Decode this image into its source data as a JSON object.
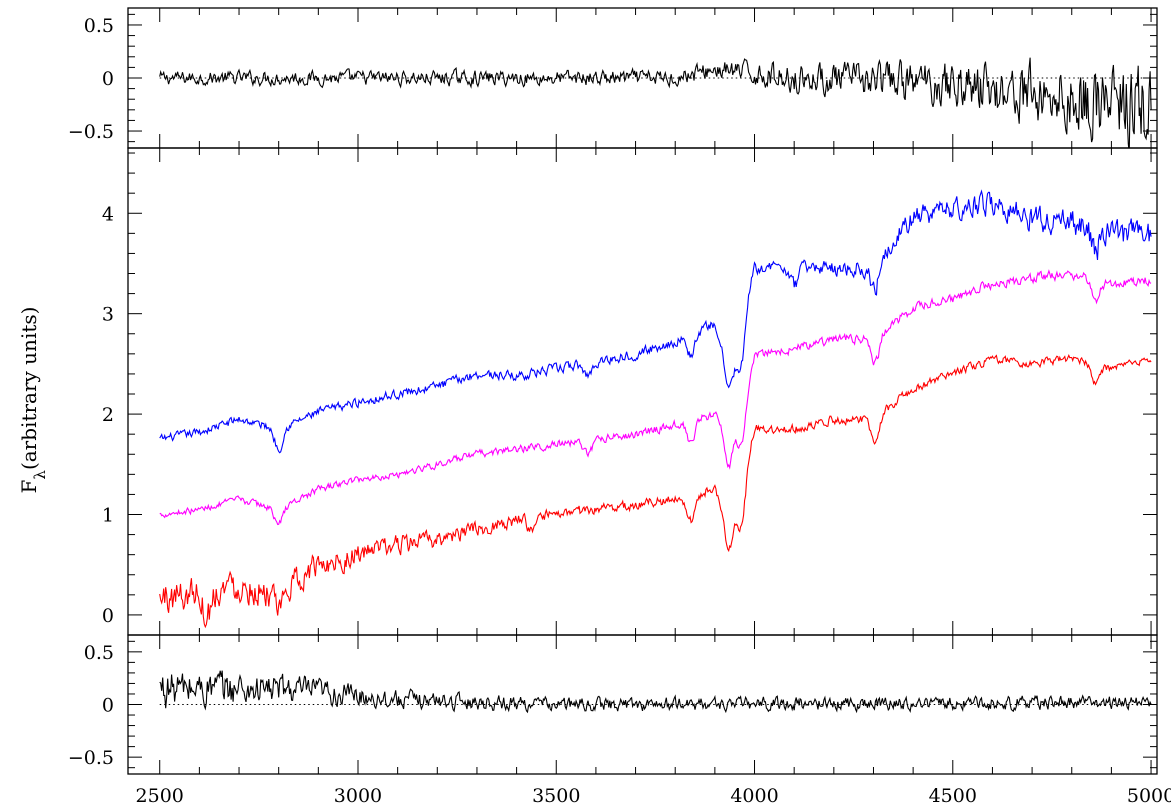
{
  "chart_data": {
    "type": "line",
    "ylabel": "Fλ(arbitrary units)",
    "ylabel_main": "F",
    "ylabel_sub": "λ",
    "ylabel_rest": "(arbitrary units)",
    "xlim": [
      2420,
      5015
    ],
    "xticks": [
      2500,
      3000,
      3500,
      4000,
      4500,
      5000
    ],
    "xtick_labels": [
      "2500",
      "3000",
      "3500",
      "4000",
      "4500",
      "5000"
    ],
    "grid": false,
    "legend": "none",
    "panels": [
      {
        "id": "top-residual",
        "ylim": [
          -0.66,
          0.66
        ],
        "yticks_labeled": [
          -0.5,
          0,
          0.5
        ],
        "ytick_labels": [
          "−0.5",
          "0",
          "0.5"
        ],
        "zero_line": "dotted",
        "series": [
          {
            "color": "#000000",
            "style": "residual",
            "noise": 0.06,
            "trend": [
              [
                2500,
                0.0
              ],
              [
                3800,
                0.0
              ],
              [
                3900,
                0.08
              ],
              [
                4100,
                0.0
              ],
              [
                4500,
                -0.05
              ],
              [
                4800,
                -0.2
              ],
              [
                5000,
                -0.3
              ]
            ],
            "noise_profile": [
              [
                2500,
                0.06
              ],
              [
                3800,
                0.07
              ],
              [
                4100,
                0.12
              ],
              [
                4500,
                0.2
              ],
              [
                4800,
                0.3
              ],
              [
                5000,
                0.4
              ]
            ]
          }
        ]
      },
      {
        "id": "main-spectra",
        "ylim": [
          -0.2,
          4.65
        ],
        "yticks_labeled": [
          0,
          1,
          2,
          3,
          4
        ],
        "ytick_labels": [
          "0",
          "1",
          "2",
          "3",
          "4"
        ],
        "series": [
          {
            "color": "#0000ff",
            "noise": 0.05,
            "points": [
              [
                2500,
                1.75
              ],
              [
                2600,
                1.82
              ],
              [
                2700,
                1.95
              ],
              [
                2800,
                1.85
              ],
              [
                2900,
                2.02
              ],
              [
                3000,
                2.12
              ],
              [
                3100,
                2.2
              ],
              [
                3200,
                2.28
              ],
              [
                3300,
                2.4
              ],
              [
                3400,
                2.38
              ],
              [
                3500,
                2.45
              ],
              [
                3600,
                2.52
              ],
              [
                3700,
                2.6
              ],
              [
                3800,
                2.72
              ],
              [
                3900,
                2.9
              ],
              [
                3930,
                2.55
              ],
              [
                3960,
                2.6
              ],
              [
                3980,
                3.2
              ],
              [
                4000,
                3.45
              ],
              [
                4100,
                3.48
              ],
              [
                4200,
                3.45
              ],
              [
                4300,
                3.45
              ],
              [
                4350,
                3.75
              ],
              [
                4400,
                3.95
              ],
              [
                4500,
                4.05
              ],
              [
                4600,
                4.1
              ],
              [
                4700,
                3.95
              ],
              [
                4800,
                3.9
              ],
              [
                4900,
                3.8
              ],
              [
                5000,
                3.8
              ]
            ],
            "dips": [
              [
                2800,
                0.2
              ],
              [
                3580,
                0.12
              ],
              [
                3840,
                0.2
              ],
              [
                3935,
                0.3
              ],
              [
                3970,
                0.35
              ],
              [
                4100,
                0.2
              ],
              [
                4305,
                0.22
              ],
              [
                4860,
                0.2
              ]
            ],
            "noise_profile": [
              [
                2500,
                0.04
              ],
              [
                4000,
                0.05
              ],
              [
                4400,
                0.1
              ],
              [
                5000,
                0.14
              ]
            ]
          },
          {
            "color": "#ff00ff",
            "noise": 0.035,
            "points": [
              [
                2500,
                1.0
              ],
              [
                2600,
                1.05
              ],
              [
                2700,
                1.15
              ],
              [
                2800,
                1.05
              ],
              [
                2900,
                1.25
              ],
              [
                3000,
                1.35
              ],
              [
                3100,
                1.4
              ],
              [
                3200,
                1.5
              ],
              [
                3300,
                1.6
              ],
              [
                3400,
                1.65
              ],
              [
                3500,
                1.7
              ],
              [
                3600,
                1.75
              ],
              [
                3700,
                1.8
              ],
              [
                3800,
                1.9
              ],
              [
                3900,
                2.0
              ],
              [
                3930,
                1.85
              ],
              [
                3960,
                1.9
              ],
              [
                3980,
                2.3
              ],
              [
                4000,
                2.6
              ],
              [
                4100,
                2.65
              ],
              [
                4200,
                2.75
              ],
              [
                4300,
                2.75
              ],
              [
                4350,
                2.9
              ],
              [
                4400,
                3.05
              ],
              [
                4500,
                3.15
              ],
              [
                4600,
                3.3
              ],
              [
                4700,
                3.35
              ],
              [
                4800,
                3.4
              ],
              [
                4900,
                3.3
              ],
              [
                5000,
                3.35
              ]
            ],
            "dips": [
              [
                2800,
                0.15
              ],
              [
                3580,
                0.15
              ],
              [
                3840,
                0.25
              ],
              [
                3935,
                0.4
              ],
              [
                3970,
                0.35
              ],
              [
                4305,
                0.25
              ],
              [
                4860,
                0.2
              ]
            ],
            "noise_profile": [
              [
                2500,
                0.03
              ],
              [
                5000,
                0.05
              ]
            ]
          },
          {
            "color": "#ff0000",
            "noise": 0.07,
            "points": [
              [
                2500,
                0.15
              ],
              [
                2600,
                0.25
              ],
              [
                2700,
                0.3
              ],
              [
                2800,
                0.2
              ],
              [
                2900,
                0.5
              ],
              [
                3000,
                0.6
              ],
              [
                3100,
                0.7
              ],
              [
                3200,
                0.75
              ],
              [
                3300,
                0.85
              ],
              [
                3400,
                0.95
              ],
              [
                3500,
                1.0
              ],
              [
                3600,
                1.05
              ],
              [
                3700,
                1.1
              ],
              [
                3800,
                1.15
              ],
              [
                3900,
                1.25
              ],
              [
                3930,
                1.0
              ],
              [
                3960,
                1.05
              ],
              [
                3980,
                1.5
              ],
              [
                4000,
                1.85
              ],
              [
                4100,
                1.85
              ],
              [
                4200,
                1.95
              ],
              [
                4300,
                1.95
              ],
              [
                4350,
                2.1
              ],
              [
                4400,
                2.25
              ],
              [
                4500,
                2.4
              ],
              [
                4600,
                2.55
              ],
              [
                4700,
                2.5
              ],
              [
                4800,
                2.55
              ],
              [
                4900,
                2.45
              ],
              [
                5000,
                2.55
              ]
            ],
            "dips": [
              [
                2620,
                0.25
              ],
              [
                2800,
                0.2
              ],
              [
                3440,
                0.15
              ],
              [
                3840,
                0.25
              ],
              [
                3935,
                0.35
              ],
              [
                3970,
                0.3
              ],
              [
                4305,
                0.25
              ],
              [
                4860,
                0.2
              ]
            ],
            "noise_profile": [
              [
                2500,
                0.18
              ],
              [
                2900,
                0.12
              ],
              [
                3200,
                0.08
              ],
              [
                3500,
                0.05
              ],
              [
                5000,
                0.035
              ]
            ]
          }
        ]
      },
      {
        "id": "bottom-residual",
        "ylim": [
          -0.66,
          0.66
        ],
        "yticks_labeled": [
          -0.5,
          0,
          0.5
        ],
        "ytick_labels": [
          "−0.5",
          "0",
          "0.5"
        ],
        "zero_line": "dotted",
        "series": [
          {
            "color": "#000000",
            "style": "residual",
            "noise": 0.06,
            "trend": [
              [
                2500,
                0.15
              ],
              [
                2800,
                0.15
              ],
              [
                3100,
                0.05
              ],
              [
                3500,
                0.0
              ],
              [
                5000,
                0.02
              ]
            ],
            "noise_profile": [
              [
                2500,
                0.18
              ],
              [
                2800,
                0.14
              ],
              [
                3100,
                0.08
              ],
              [
                3500,
                0.06
              ],
              [
                5000,
                0.06
              ]
            ]
          }
        ]
      }
    ]
  }
}
